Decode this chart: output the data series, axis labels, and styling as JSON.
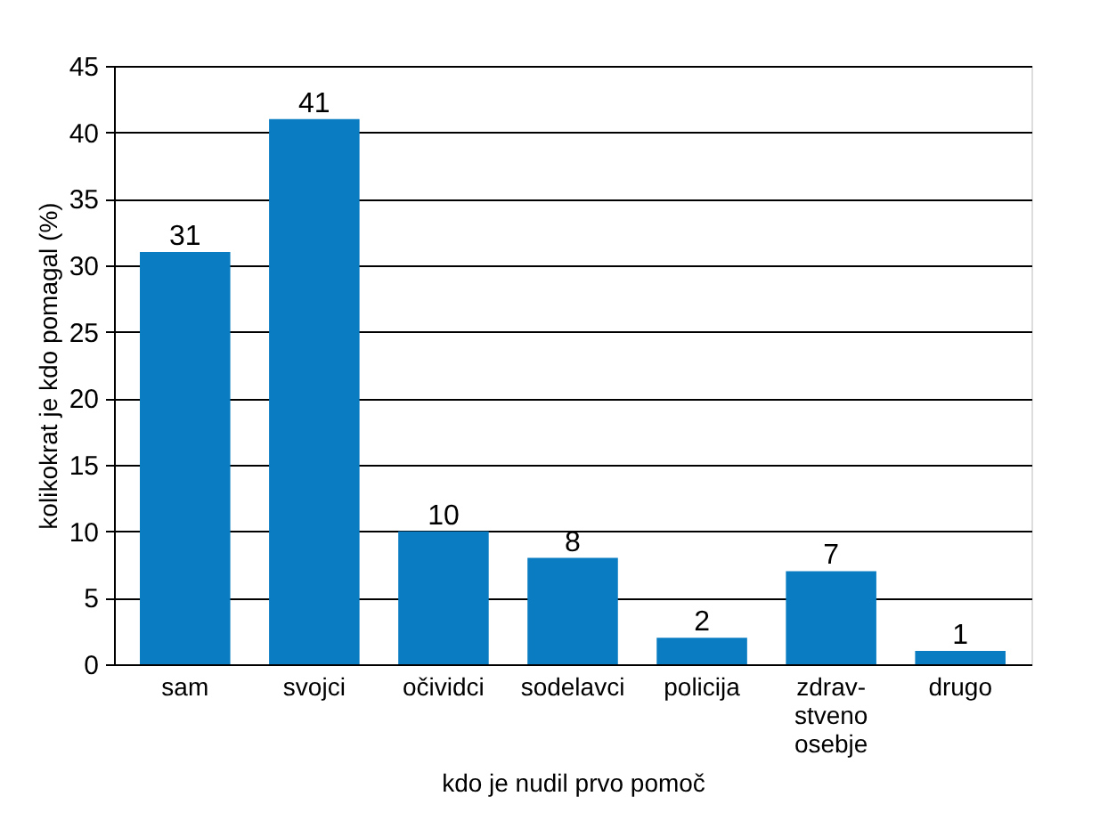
{
  "chart_data": {
    "type": "bar",
    "xlabel": "kdo je nudil prvo pomoč",
    "ylabel": "kolikokrat je kdo pomagal (%)",
    "categories": [
      "sam",
      "svojci",
      "očividci",
      "sodelavci",
      "policija",
      "zdrav-\nstveno\nosebje",
      "drugo"
    ],
    "values": [
      31,
      41,
      10,
      8,
      2,
      7,
      1
    ],
    "color": "#0a7dc2",
    "ylim": [
      0,
      45
    ],
    "yticks": [
      0,
      5,
      10,
      15,
      20,
      25,
      30,
      35,
      40,
      45
    ],
    "grid": "y",
    "data_labels": true
  }
}
